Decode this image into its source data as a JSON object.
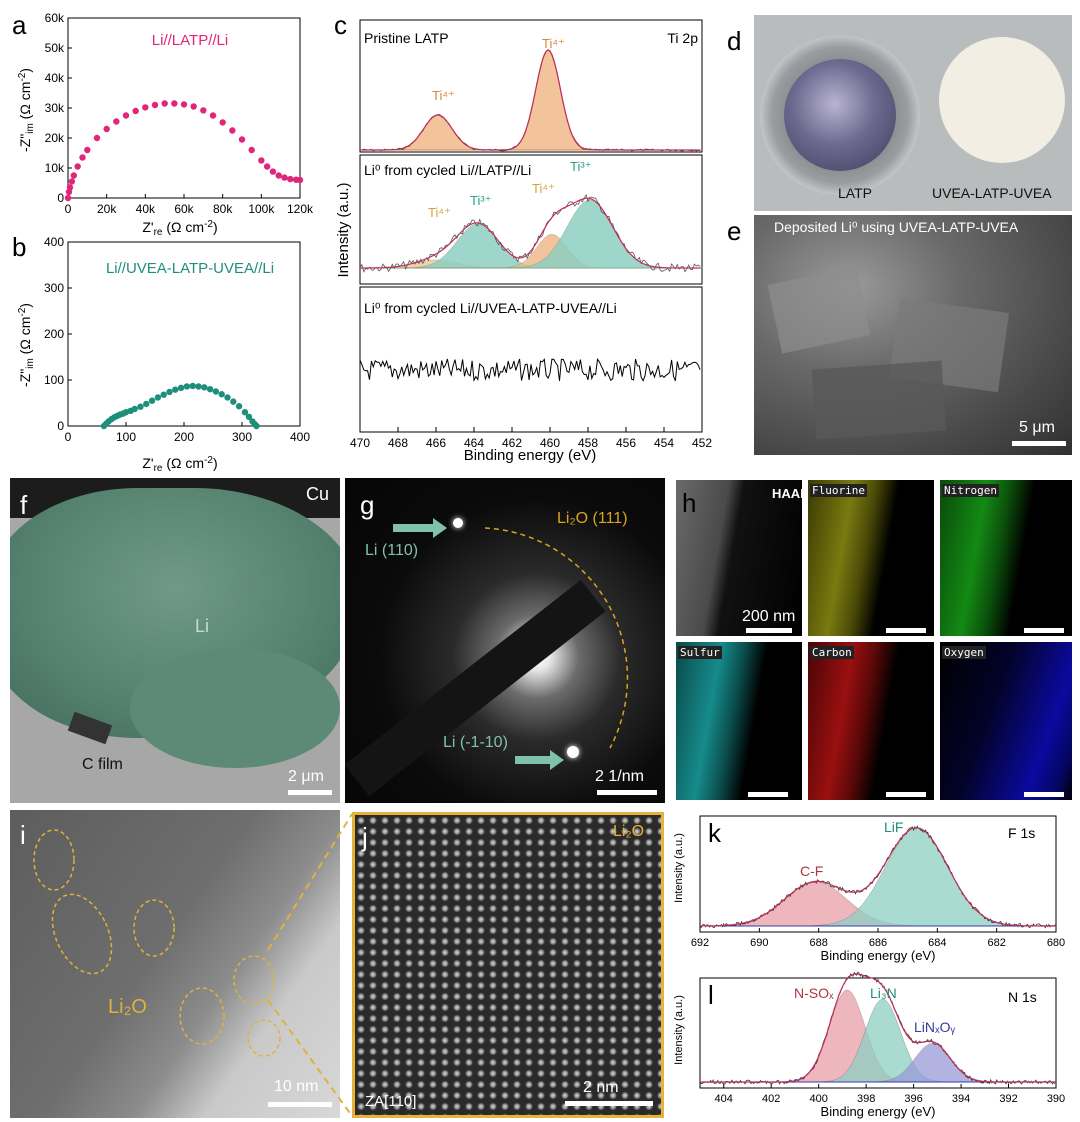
{
  "panels": {
    "a": {
      "label": "a",
      "legend": "Li//LATP//Li",
      "legend_color": "#e0257a",
      "ylabel": "-Z\"im (Ω cm⁻²)",
      "xlabel": "Z're (Ω cm⁻²)"
    },
    "b": {
      "label": "b",
      "legend": "Li//UVEA-LATP-UVEA//Li",
      "legend_color": "#1f8f7a",
      "ylabel": "-Z\"im (Ω cm⁻²)",
      "xlabel": "Z're (Ω cm⁻²)"
    },
    "c": {
      "label": "c",
      "sub1_title": "Pristine LATP",
      "sub1_right": "Ti 2p",
      "sub2_title": "Li⁰ from cycled Li//LATP//Li",
      "sub3_title": "Li⁰ from cycled Li//UVEA-LATP-UVEA//Li",
      "ylabel": "Intensity (a.u.)",
      "xlabel": "Binding energy (eV)",
      "peak_labels": [
        "Ti⁴⁺",
        "Ti⁴⁺",
        "Ti⁴⁺",
        "Ti³⁺",
        "Ti⁴⁺",
        "Ti³⁺"
      ]
    },
    "d": {
      "label": "d",
      "caption_left": "LATP",
      "caption_right": "UVEA-LATP-UVEA"
    },
    "e": {
      "label": "e",
      "caption": "Deposited Li⁰ using UVEA-LATP-UVEA",
      "scale": "5 μm"
    },
    "f": {
      "label": "f",
      "cu": "Cu",
      "li": "Li",
      "cfilm": "C film",
      "scale": "2 μm"
    },
    "g": {
      "label": "g",
      "li110": "Li (110)",
      "li_1_10": "Li (-1-10)",
      "li2o": "Li₂O (111)",
      "scale": "2 1/nm"
    },
    "h": {
      "label": "h",
      "tiles": [
        "HAADF",
        "Fluorine",
        "Nitrogen",
        "Sulfur",
        "Carbon",
        "Oxygen"
      ],
      "scale": "200 nm"
    },
    "i": {
      "label": "i",
      "li2o": "Li₂O",
      "scale": "10 nm"
    },
    "j": {
      "label": "j",
      "li2o": "Li₂O",
      "za": "ZA[110]",
      "scale": "2 nm"
    },
    "k": {
      "label": "k",
      "right": "F 1s",
      "cf": "C-F",
      "lif": "LiF",
      "ylabel": "Intensity (a.u.)",
      "xlabel": "Binding energy (eV)"
    },
    "l": {
      "label": "l",
      "right": "N 1s",
      "nsox": "N-SOₓ",
      "li3n": "Li₃N",
      "linxoy": "LiNₓOᵧ",
      "ylabel": "Intensity (a.u.)",
      "xlabel": "Binding energy (eV)"
    }
  },
  "chart_data": [
    {
      "type": "scatter",
      "panel": "a",
      "series": [
        {
          "name": "Li//LATP//Li",
          "color": "#e0257a",
          "x": [
            0,
            500,
            1000,
            2000,
            3000,
            5000,
            7500,
            10000,
            15000,
            20000,
            25000,
            30000,
            35000,
            40000,
            45000,
            50000,
            55000,
            60000,
            65000,
            70000,
            75000,
            80000,
            85000,
            90000,
            95000,
            100000,
            103000,
            106000,
            109000,
            112000,
            115000,
            118000,
            120000
          ],
          "y": [
            0,
            2000,
            3500,
            5500,
            7500,
            10500,
            13500,
            16000,
            20000,
            23000,
            25500,
            27500,
            29000,
            30200,
            31000,
            31500,
            31500,
            31200,
            30500,
            29200,
            27500,
            25200,
            22500,
            19500,
            16000,
            12500,
            10500,
            8800,
            7500,
            6800,
            6300,
            6100,
            6000
          ]
        }
      ],
      "xlim": [
        0,
        120000
      ],
      "ylim": [
        0,
        60000
      ],
      "xticks": [
        "0",
        "20k",
        "40k",
        "60k",
        "80k",
        "100k",
        "120k"
      ],
      "yticks": [
        "0",
        "10k",
        "20k",
        "30k",
        "40k",
        "50k",
        "60k"
      ]
    },
    {
      "type": "scatter",
      "panel": "b",
      "series": [
        {
          "name": "Li//UVEA-LATP-UVEA//Li",
          "color": "#1f8f7a",
          "x": [
            62,
            66,
            70,
            75,
            80,
            85,
            90,
            95,
            100,
            108,
            115,
            125,
            135,
            145,
            155,
            165,
            175,
            185,
            195,
            205,
            215,
            225,
            235,
            245,
            255,
            265,
            275,
            285,
            295,
            305,
            312,
            318,
            322,
            325
          ],
          "y": [
            0,
            5,
            10,
            15,
            19,
            22,
            25,
            27,
            30,
            33,
            37,
            42,
            48,
            55,
            62,
            68,
            74,
            79,
            83,
            86,
            87,
            86,
            84,
            80,
            75,
            69,
            62,
            53,
            43,
            30,
            20,
            10,
            4,
            0
          ]
        }
      ],
      "xlim": [
        0,
        400
      ],
      "ylim": [
        0,
        400
      ],
      "xticks": [
        "0",
        "100",
        "200",
        "300",
        "400"
      ],
      "yticks": [
        "0",
        "100",
        "200",
        "300",
        "400"
      ]
    },
    {
      "type": "line",
      "panel": "c",
      "xlim": [
        470,
        452
      ],
      "xticks": [
        "470",
        "468",
        "466",
        "464",
        "462",
        "460",
        "458",
        "456",
        "454",
        "452"
      ]
    },
    {
      "type": "area",
      "panel": "k",
      "xlim": [
        692,
        680
      ],
      "xticks": [
        "692",
        "690",
        "688",
        "686",
        "684",
        "682",
        "680"
      ],
      "peaks": [
        {
          "name": "C-F",
          "center": 688.1,
          "height": 0.45
        },
        {
          "name": "LiF",
          "center": 684.7,
          "height": 1.0
        }
      ]
    },
    {
      "type": "area",
      "panel": "l",
      "xlim": [
        405,
        390
      ],
      "xticks": [
        "404",
        "402",
        "400",
        "398",
        "396",
        "394",
        "392",
        "390"
      ],
      "peaks": [
        {
          "name": "N-SOₓ",
          "center": 398.8,
          "height": 1.0
        },
        {
          "name": "Li₃N",
          "center": 397.3,
          "height": 0.9
        },
        {
          "name": "LiNₓOᵧ",
          "center": 395.2,
          "height": 0.42
        }
      ]
    }
  ]
}
